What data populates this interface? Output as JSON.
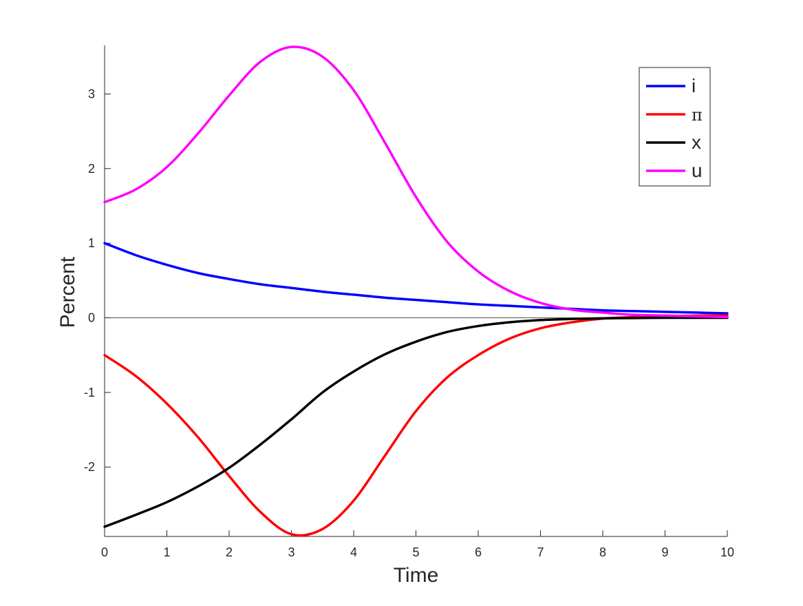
{
  "chart_data": {
    "type": "line",
    "title": "",
    "xlabel": "Time",
    "ylabel": "Percent",
    "xlim": [
      0,
      10
    ],
    "ylim": [
      -2.93,
      3.65
    ],
    "xticks": [
      "0",
      "1",
      "2",
      "3",
      "4",
      "5",
      "6",
      "7",
      "8",
      "9",
      "10"
    ],
    "yticks": [
      "-2",
      "-1",
      "0",
      "1",
      "2",
      "3"
    ],
    "grid": false,
    "zero_line": true,
    "legend_position": "top-right",
    "x": [
      0,
      0.5,
      1,
      1.5,
      2,
      2.5,
      3,
      3.5,
      4,
      4.5,
      5,
      5.5,
      6,
      6.5,
      7,
      7.5,
      8,
      8.5,
      9,
      9.5,
      10
    ],
    "series": [
      {
        "name": "i",
        "color": "#0000ff",
        "values": [
          1.0,
          0.84,
          0.71,
          0.6,
          0.52,
          0.45,
          0.4,
          0.35,
          0.31,
          0.27,
          0.24,
          0.21,
          0.18,
          0.16,
          0.14,
          0.12,
          0.1,
          0.09,
          0.08,
          0.07,
          0.06
        ]
      },
      {
        "name": "π",
        "color": "#ff0000",
        "values": [
          -0.5,
          -0.78,
          -1.15,
          -1.6,
          -2.12,
          -2.6,
          -2.9,
          -2.83,
          -2.45,
          -1.85,
          -1.25,
          -0.8,
          -0.5,
          -0.28,
          -0.14,
          -0.06,
          -0.01,
          0.01,
          0.02,
          0.03,
          0.03
        ]
      },
      {
        "name": "x",
        "color": "#000000",
        "values": [
          -2.8,
          -2.64,
          -2.47,
          -2.26,
          -2.01,
          -1.7,
          -1.36,
          -1.0,
          -0.72,
          -0.49,
          -0.32,
          -0.19,
          -0.11,
          -0.06,
          -0.03,
          -0.015,
          -0.007,
          -0.003,
          0.0,
          0.0,
          0.0
        ]
      },
      {
        "name": "u",
        "color": "#ff00ff",
        "values": [
          1.55,
          1.72,
          2.02,
          2.47,
          2.98,
          3.43,
          3.63,
          3.5,
          3.05,
          2.35,
          1.62,
          1.02,
          0.62,
          0.36,
          0.2,
          0.11,
          0.07,
          0.04,
          0.03,
          0.02,
          0.01
        ]
      }
    ]
  }
}
